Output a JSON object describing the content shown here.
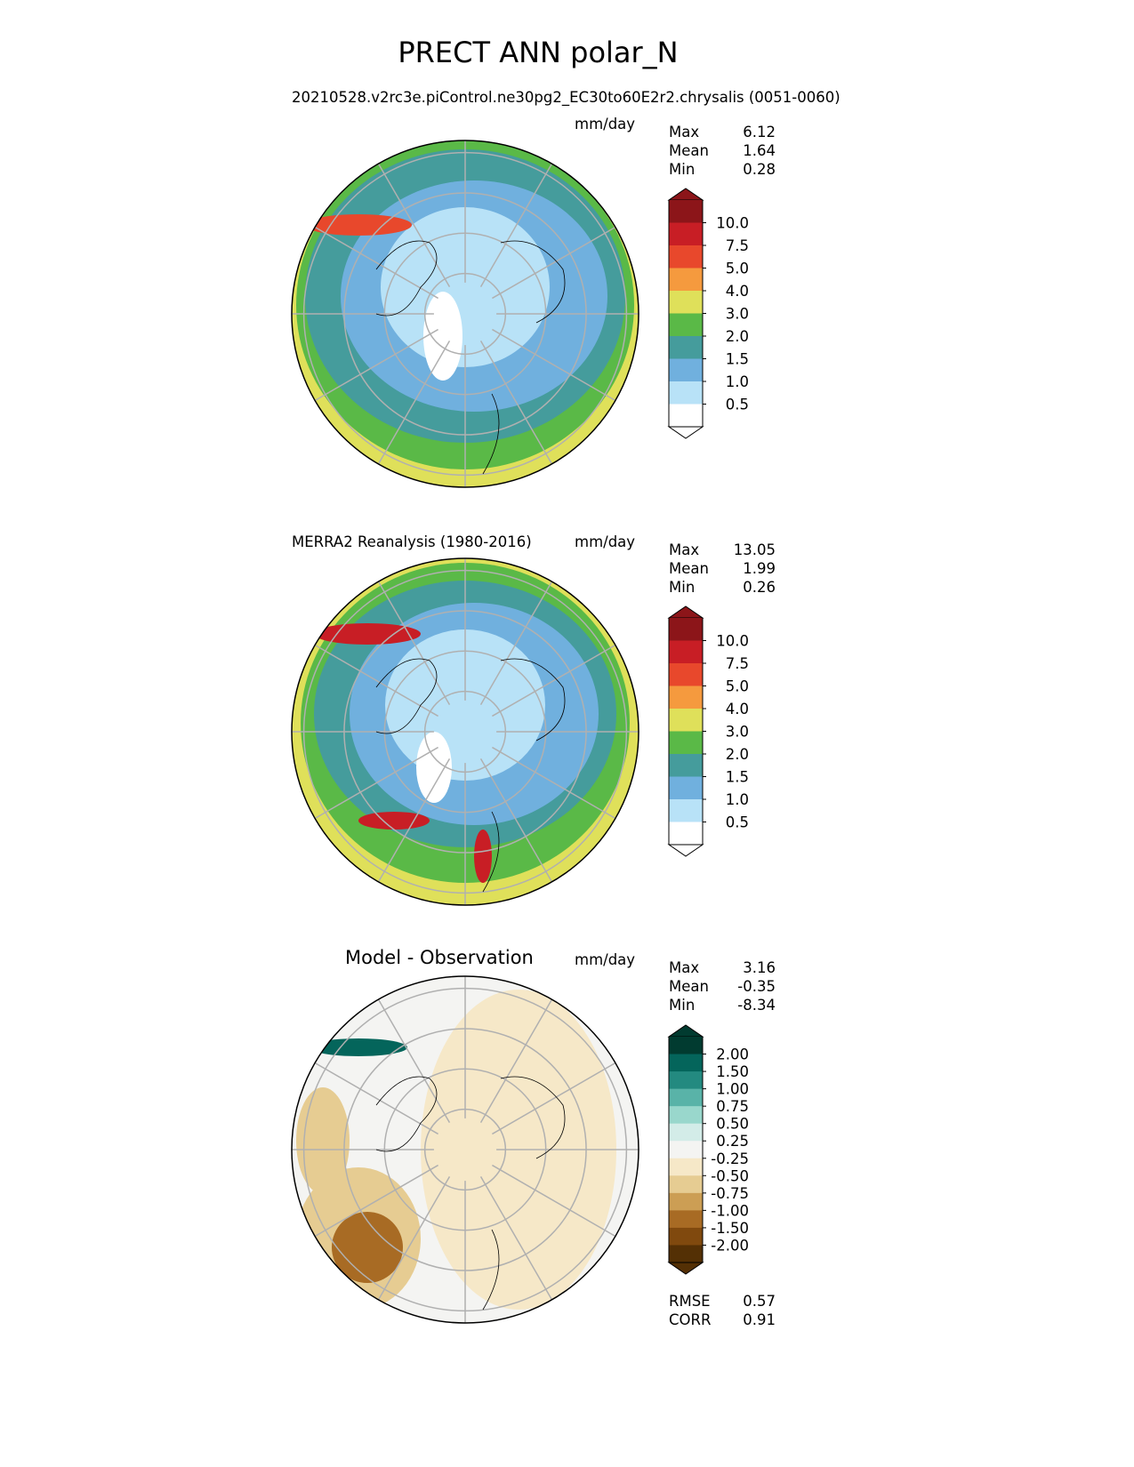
{
  "title": "PRECT ANN polar_N",
  "panels": [
    {
      "left_title": "20210528.v2rc3e.piControl.ne30pg2_EC30to60E2r2.chrysalis (0051-0060)",
      "units": "mm/day",
      "stats": {
        "max_label": "Max",
        "max": "6.12",
        "mean_label": "Mean",
        "mean": "1.64",
        "min_label": "Min",
        "min": "0.28"
      }
    },
    {
      "left_title": "MERRA2 Reanalysis (1980-2016)",
      "units": "mm/day",
      "stats": {
        "max_label": "Max",
        "max": "13.05",
        "mean_label": "Mean",
        "mean": "1.99",
        "min_label": "Min",
        "min": "0.26"
      }
    },
    {
      "center_title": "Model - Observation",
      "units": "mm/day",
      "stats": {
        "max_label": "Max",
        "max": "3.16",
        "mean_label": "Mean",
        "mean": "-0.35",
        "min_label": "Min",
        "min": "-8.34"
      },
      "metrics": {
        "rmse_label": "RMSE",
        "rmse": "0.57",
        "corr_label": "CORR",
        "corr": "0.91"
      }
    }
  ],
  "colorbar_main": {
    "ticks": [
      "10.0",
      "7.5",
      "5.0",
      "4.0",
      "3.0",
      "2.0",
      "1.5",
      "1.0",
      "0.5"
    ],
    "colors": [
      "#8c1519",
      "#c81e25",
      "#e8482c",
      "#f59a3e",
      "#dfe05a",
      "#5ab947",
      "#459c9c",
      "#70b0de",
      "#b8e2f7",
      "#ffffff"
    ]
  },
  "colorbar_diff": {
    "ticks": [
      "2.00",
      "1.50",
      "1.00",
      "0.75",
      "0.50",
      "0.25",
      "-0.25",
      "-0.50",
      "-0.75",
      "-1.00",
      "-1.50",
      "-2.00"
    ],
    "colors": [
      "#013b30",
      "#04655b",
      "#238a80",
      "#59b3a8",
      "#99d7cc",
      "#d3ece8",
      "#f4f4f2",
      "#f6e8c8",
      "#e6cc92",
      "#cc9e54",
      "#a86b24",
      "#80490e",
      "#543005"
    ]
  }
}
